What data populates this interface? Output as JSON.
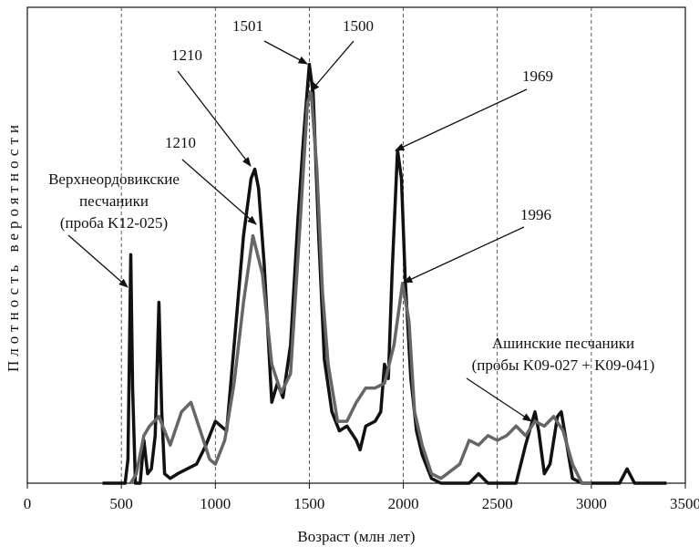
{
  "chart_data": {
    "type": "line",
    "xlabel": "Возраст (млн лет)",
    "ylabel": "Плотность вероятности",
    "xlim": [
      0,
      3500
    ],
    "xticks": [
      0,
      500,
      1000,
      1500,
      2000,
      2500,
      3000,
      3500
    ],
    "ylim": [
      0,
      100
    ],
    "grid": true,
    "series": [
      {
        "color": "#111111",
        "x": [
          400,
          520,
          535,
          550,
          560,
          575,
          600,
          620,
          640,
          660,
          680,
          700,
          715,
          730,
          760,
          800,
          900,
          950,
          1000,
          1030,
          1060,
          1100,
          1150,
          1190,
          1210,
          1230,
          1260,
          1300,
          1330,
          1360,
          1400,
          1440,
          1470,
          1500,
          1520,
          1550,
          1580,
          1620,
          1660,
          1700,
          1750,
          1770,
          1800,
          1850,
          1880,
          1900,
          1920,
          1940,
          1969,
          1990,
          2010,
          2040,
          2070,
          2100,
          2150,
          2200,
          2350,
          2400,
          2450,
          2600,
          2650,
          2700,
          2720,
          2750,
          2780,
          2820,
          2840,
          2870,
          2900,
          2950,
          3150,
          3190,
          3230,
          3400
        ],
        "values": [
          0,
          0,
          5,
          48,
          20,
          0,
          0,
          9,
          2,
          3,
          10,
          38,
          15,
          2,
          1,
          2,
          4,
          8,
          13,
          12,
          11,
          29,
          52,
          64,
          66,
          62,
          46,
          17,
          21,
          18,
          29,
          56,
          73,
          88,
          82,
          52,
          26,
          15,
          11,
          12,
          9,
          7,
          12,
          13,
          15,
          25,
          22,
          44,
          70,
          64,
          43,
          22,
          11,
          6,
          1,
          0,
          0,
          2,
          0,
          0,
          8,
          15,
          11,
          2,
          4,
          14,
          15,
          8,
          1,
          0,
          0,
          3,
          0,
          0
        ]
      },
      {
        "color": "#666666",
        "x": [
          550,
          580,
          620,
          650,
          700,
          760,
          820,
          870,
          920,
          970,
          1000,
          1050,
          1100,
          1150,
          1200,
          1250,
          1300,
          1350,
          1400,
          1450,
          1490,
          1510,
          1540,
          1570,
          1600,
          1650,
          1700,
          1750,
          1800,
          1850,
          1900,
          1950,
          1996,
          2030,
          2060,
          2100,
          2150,
          2200,
          2300,
          2350,
          2400,
          2450,
          2500,
          2550,
          2600,
          2650,
          2700,
          2750,
          2800,
          2850,
          2900,
          2950,
          3000
        ],
        "values": [
          0,
          2,
          10,
          12,
          14,
          8,
          15,
          17,
          11,
          5,
          4,
          9,
          21,
          38,
          52,
          44,
          25,
          19,
          23,
          54,
          80,
          82,
          66,
          40,
          25,
          13,
          13,
          17,
          20,
          20,
          21,
          29,
          42,
          34,
          15,
          8,
          2,
          1,
          4,
          9,
          8,
          10,
          9,
          10,
          12,
          10,
          13,
          12,
          14,
          11,
          4,
          0,
          0
        ]
      }
    ],
    "annotations": [
      {
        "lines": [
          "1501"
        ]
      },
      {
        "lines": [
          "1500"
        ]
      },
      {
        "lines": [
          "1210"
        ]
      },
      {
        "lines": [
          "1210"
        ]
      },
      {
        "lines": [
          "1969"
        ]
      },
      {
        "lines": [
          "1996"
        ]
      },
      {
        "lines": [
          "Верхнеордовикские",
          "песчаники",
          "(проба K12-025)"
        ]
      },
      {
        "lines": [
          "Ашинские песчаники",
          "(пробы K09-027 + K09-041)"
        ]
      }
    ]
  }
}
